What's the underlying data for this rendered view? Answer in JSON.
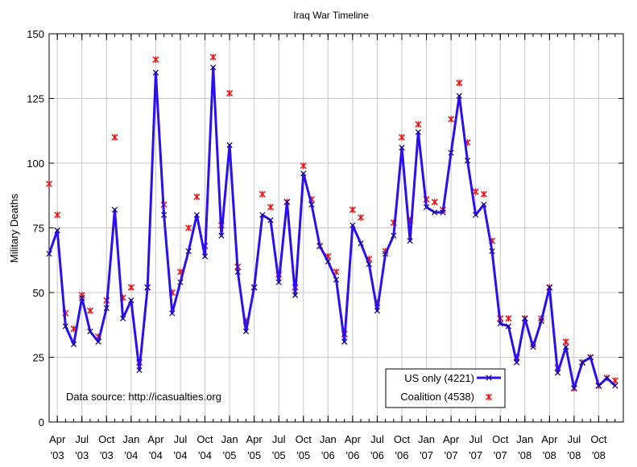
{
  "chart_data": {
    "type": "line",
    "title": "Iraq War Timeline",
    "xlabel": "",
    "ylabel": "Military Deaths",
    "ylim": [
      0,
      150
    ],
    "yticks": [
      0,
      25,
      50,
      75,
      100,
      125,
      150
    ],
    "grid": true,
    "annotation": "Data source: http://icasualties.org",
    "legend_position": "bottom-right",
    "x_tick_labels": [
      {
        "month": "Apr",
        "year": "'03"
      },
      {
        "month": "Jul",
        "year": "'03"
      },
      {
        "month": "Oct",
        "year": "'03"
      },
      {
        "month": "Jan",
        "year": "'04"
      },
      {
        "month": "Apr",
        "year": "'04"
      },
      {
        "month": "Jul",
        "year": "'04"
      },
      {
        "month": "Oct",
        "year": "'04"
      },
      {
        "month": "Jan",
        "year": "'05"
      },
      {
        "month": "Apr",
        "year": "'05"
      },
      {
        "month": "Jul",
        "year": "'05"
      },
      {
        "month": "Oct",
        "year": "'05"
      },
      {
        "month": "Jan",
        "year": "'06"
      },
      {
        "month": "Apr",
        "year": "'06"
      },
      {
        "month": "Jul",
        "year": "'06"
      },
      {
        "month": "Oct",
        "year": "'06"
      },
      {
        "month": "Jan",
        "year": "'07"
      },
      {
        "month": "Apr",
        "year": "'07"
      },
      {
        "month": "Jul",
        "year": "'07"
      },
      {
        "month": "Oct",
        "year": "'07"
      },
      {
        "month": "Jan",
        "year": "'08"
      },
      {
        "month": "Apr",
        "year": "'08"
      },
      {
        "month": "Jul",
        "year": "'08"
      },
      {
        "month": "Oct",
        "year": "'08"
      }
    ],
    "series": [
      {
        "name": "US only (4221)",
        "color": "#2b0ff0",
        "marker": "x",
        "values": [
          65,
          74,
          37,
          30,
          48,
          35,
          31,
          44,
          82,
          40,
          47,
          20,
          52,
          135,
          80,
          42,
          54,
          66,
          80,
          64,
          137,
          72,
          107,
          58,
          35,
          52,
          80,
          78,
          54,
          85,
          49,
          96,
          84,
          68,
          62,
          55,
          31,
          76,
          69,
          61,
          43,
          65,
          72,
          106,
          70,
          112,
          83,
          81,
          81,
          104,
          126,
          101,
          80,
          84,
          66,
          38,
          37,
          23,
          40,
          29,
          39,
          52,
          19,
          29,
          13,
          23,
          25,
          14,
          17,
          14
        ]
      },
      {
        "name": "Coalition (4538)",
        "color": "#ee1111",
        "marker": "asterisk",
        "values": [
          92,
          80,
          42,
          36,
          49,
          43,
          33,
          47,
          110,
          48,
          52,
          23,
          52,
          140,
          84,
          50,
          58,
          75,
          87,
          68,
          141,
          76,
          127,
          60,
          39,
          52,
          88,
          83,
          57,
          85,
          52,
          99,
          86,
          68,
          64,
          58,
          34,
          82,
          79,
          63,
          46,
          66,
          77,
          110,
          78,
          115,
          86,
          85,
          82,
          117,
          131,
          108,
          89,
          88,
          70,
          40,
          40,
          25,
          40,
          30,
          40,
          52,
          21,
          31,
          13,
          23,
          25,
          14,
          17,
          16
        ]
      }
    ]
  }
}
